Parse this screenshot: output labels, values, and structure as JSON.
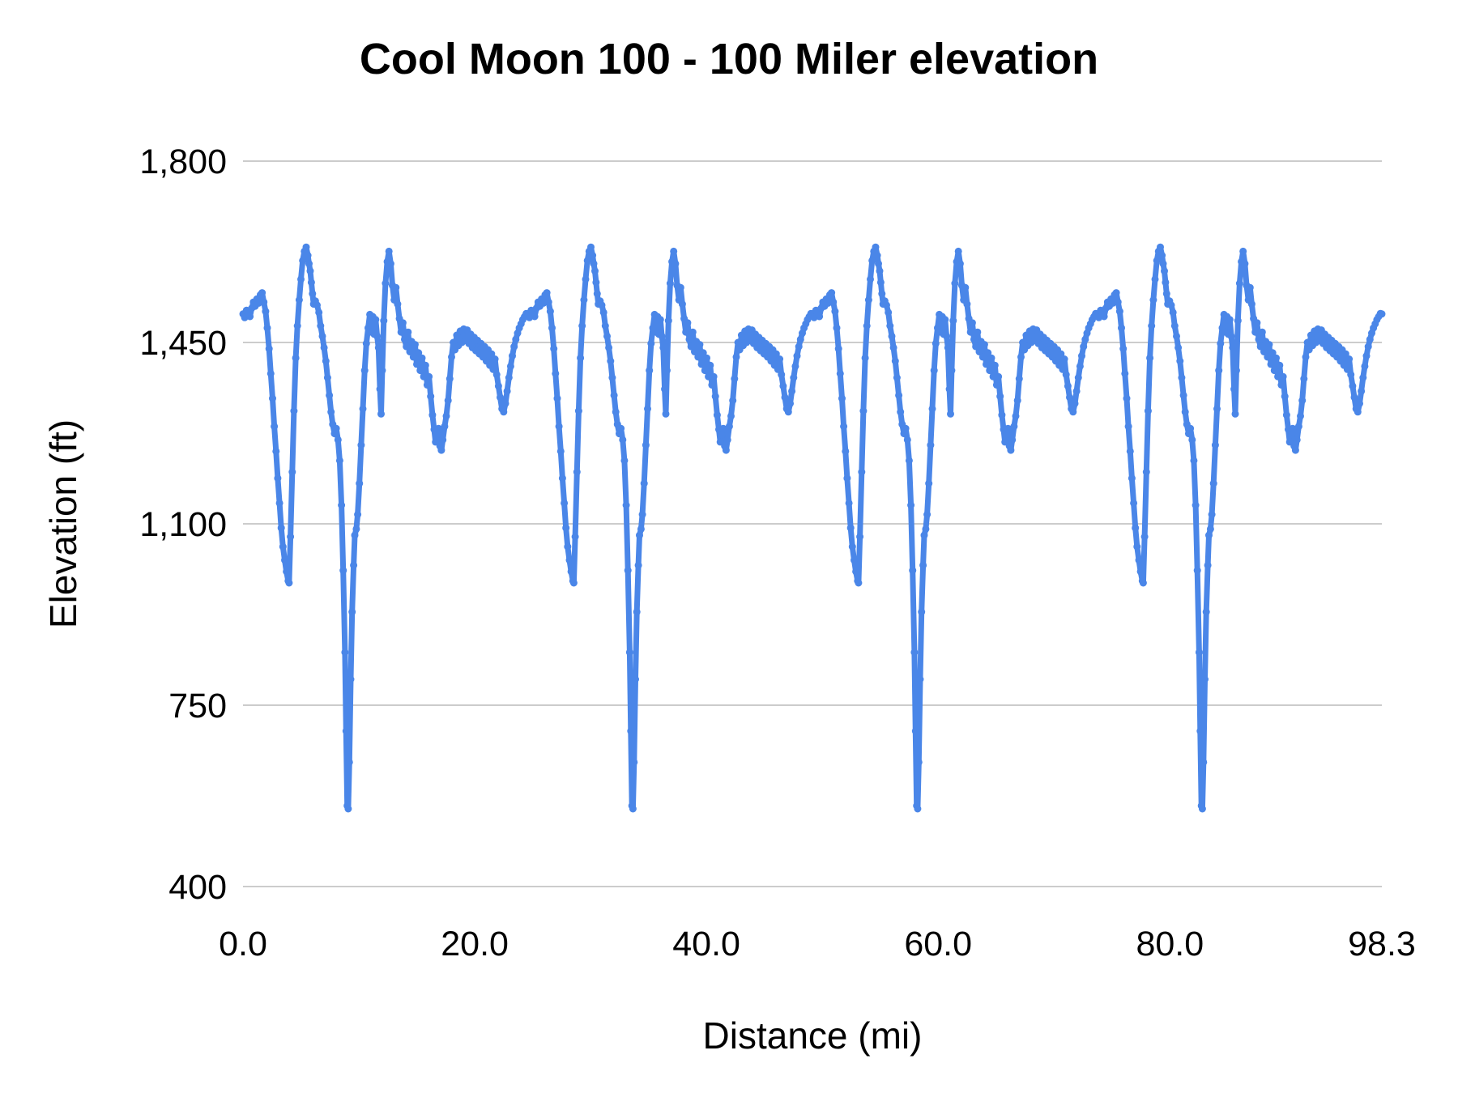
{
  "chart_data": {
    "type": "line",
    "title": "Cool Moon 100 - 100 Miler elevation",
    "xlabel": "Distance (mi)",
    "ylabel": "Elevation (ft)",
    "xlim": [
      0,
      98.3
    ],
    "ylim": [
      400,
      1800
    ],
    "x_ticks": [
      0,
      20,
      40,
      60,
      80,
      98.3
    ],
    "x_tick_labels": [
      "0.0",
      "20.0",
      "40.0",
      "60.0",
      "80.0",
      "98.3"
    ],
    "y_ticks": [
      400,
      750,
      1100,
      1450,
      1800
    ],
    "y_tick_labels": [
      "400",
      "750",
      "1,100",
      "1,450",
      "1,800"
    ],
    "grid": "horizontal-only",
    "gridline_color": "#cccccc",
    "legend": "none",
    "background_color": "#ffffff",
    "series": [
      {
        "name": "Elevation",
        "color": "#4a86e8",
        "structure": "course of 4 repeated laps; full x/y series = lap_profile repeated laps times at lap_length_mi spacing, closing at final point",
        "laps": 4,
        "lap_length_mi": 24.575,
        "final_point": [
          98.3,
          1505
        ],
        "lap_profile": [
          [
            0.0,
            1505
          ],
          [
            0.15,
            1498
          ],
          [
            0.3,
            1512
          ],
          [
            0.45,
            1506
          ],
          [
            0.6,
            1500
          ],
          [
            0.75,
            1516
          ],
          [
            0.9,
            1528
          ],
          [
            1.05,
            1520
          ],
          [
            1.2,
            1534
          ],
          [
            1.35,
            1526
          ],
          [
            1.5,
            1542
          ],
          [
            1.65,
            1546
          ],
          [
            1.8,
            1528
          ],
          [
            1.95,
            1510
          ],
          [
            2.1,
            1478
          ],
          [
            2.25,
            1438
          ],
          [
            2.4,
            1390
          ],
          [
            2.55,
            1342
          ],
          [
            2.7,
            1288
          ],
          [
            2.85,
            1240
          ],
          [
            3.0,
            1188
          ],
          [
            3.15,
            1140
          ],
          [
            3.3,
            1092
          ],
          [
            3.45,
            1056
          ],
          [
            3.6,
            1030
          ],
          [
            3.75,
            1008
          ],
          [
            3.9,
            990
          ],
          [
            3.98,
            986
          ],
          [
            4.1,
            1075
          ],
          [
            4.25,
            1200
          ],
          [
            4.4,
            1318
          ],
          [
            4.55,
            1420
          ],
          [
            4.7,
            1482
          ],
          [
            4.85,
            1532
          ],
          [
            5.0,
            1572
          ],
          [
            5.15,
            1608
          ],
          [
            5.3,
            1626
          ],
          [
            5.45,
            1634
          ],
          [
            5.6,
            1618
          ],
          [
            5.7,
            1602
          ],
          [
            5.8,
            1588
          ],
          [
            5.9,
            1566
          ],
          [
            6.0,
            1544
          ],
          [
            6.1,
            1524
          ],
          [
            6.25,
            1530
          ],
          [
            6.4,
            1522
          ],
          [
            6.55,
            1508
          ],
          [
            6.7,
            1482
          ],
          [
            6.85,
            1462
          ],
          [
            7.0,
            1440
          ],
          [
            7.15,
            1414
          ],
          [
            7.3,
            1382
          ],
          [
            7.45,
            1348
          ],
          [
            7.6,
            1316
          ],
          [
            7.75,
            1292
          ],
          [
            7.9,
            1274
          ],
          [
            8.05,
            1284
          ],
          [
            8.2,
            1262
          ],
          [
            8.35,
            1222
          ],
          [
            8.5,
            1136
          ],
          [
            8.65,
            1010
          ],
          [
            8.8,
            852
          ],
          [
            8.9,
            700
          ],
          [
            9.0,
            556
          ],
          [
            9.08,
            550
          ],
          [
            9.18,
            640
          ],
          [
            9.3,
            800
          ],
          [
            9.42,
            930
          ],
          [
            9.55,
            1020
          ],
          [
            9.65,
            1078
          ],
          [
            9.78,
            1090
          ],
          [
            9.9,
            1118
          ],
          [
            10.05,
            1178
          ],
          [
            10.2,
            1252
          ],
          [
            10.35,
            1322
          ],
          [
            10.5,
            1396
          ],
          [
            10.65,
            1448
          ],
          [
            10.8,
            1478
          ],
          [
            10.95,
            1504
          ],
          [
            11.08,
            1470
          ],
          [
            11.2,
            1500
          ],
          [
            11.32,
            1466
          ],
          [
            11.45,
            1494
          ],
          [
            11.58,
            1462
          ],
          [
            11.7,
            1440
          ],
          [
            11.82,
            1360
          ],
          [
            11.92,
            1312
          ],
          [
            12.02,
            1396
          ],
          [
            12.15,
            1492
          ],
          [
            12.3,
            1564
          ],
          [
            12.45,
            1606
          ],
          [
            12.6,
            1626
          ],
          [
            12.75,
            1602
          ],
          [
            12.9,
            1560
          ],
          [
            13.05,
            1532
          ],
          [
            13.2,
            1556
          ],
          [
            13.35,
            1524
          ],
          [
            13.5,
            1496
          ],
          [
            13.65,
            1470
          ],
          [
            13.8,
            1488
          ],
          [
            13.95,
            1456
          ],
          [
            14.1,
            1442
          ],
          [
            14.25,
            1470
          ],
          [
            14.4,
            1432
          ],
          [
            14.55,
            1452
          ],
          [
            14.7,
            1422
          ],
          [
            14.85,
            1446
          ],
          [
            15.0,
            1408
          ],
          [
            15.15,
            1430
          ],
          [
            15.3,
            1396
          ],
          [
            15.45,
            1420
          ],
          [
            15.6,
            1384
          ],
          [
            15.75,
            1406
          ],
          [
            15.9,
            1368
          ],
          [
            16.05,
            1384
          ],
          [
            16.2,
            1346
          ],
          [
            16.35,
            1310
          ],
          [
            16.5,
            1282
          ],
          [
            16.62,
            1258
          ],
          [
            16.75,
            1272
          ],
          [
            16.88,
            1284
          ],
          [
            17.0,
            1250
          ],
          [
            17.12,
            1242
          ],
          [
            17.25,
            1262
          ],
          [
            17.4,
            1288
          ],
          [
            17.55,
            1308
          ],
          [
            17.7,
            1338
          ],
          [
            17.85,
            1380
          ],
          [
            18.0,
            1422
          ],
          [
            18.15,
            1450
          ],
          [
            18.3,
            1436
          ],
          [
            18.45,
            1464
          ],
          [
            18.6,
            1444
          ],
          [
            18.75,
            1472
          ],
          [
            18.9,
            1450
          ],
          [
            19.05,
            1476
          ],
          [
            19.2,
            1454
          ],
          [
            19.35,
            1474
          ],
          [
            19.5,
            1448
          ],
          [
            19.65,
            1466
          ],
          [
            19.8,
            1440
          ],
          [
            19.95,
            1460
          ],
          [
            20.1,
            1434
          ],
          [
            20.25,
            1454
          ],
          [
            20.4,
            1428
          ],
          [
            20.55,
            1448
          ],
          [
            20.7,
            1422
          ],
          [
            20.85,
            1442
          ],
          [
            21.0,
            1414
          ],
          [
            21.15,
            1436
          ],
          [
            21.3,
            1406
          ],
          [
            21.45,
            1428
          ],
          [
            21.6,
            1398
          ],
          [
            21.75,
            1418
          ],
          [
            21.9,
            1388
          ],
          [
            22.05,
            1366
          ],
          [
            22.2,
            1344
          ],
          [
            22.35,
            1322
          ],
          [
            22.5,
            1316
          ],
          [
            22.65,
            1332
          ],
          [
            22.8,
            1356
          ],
          [
            22.95,
            1382
          ],
          [
            23.1,
            1404
          ],
          [
            23.25,
            1424
          ],
          [
            23.4,
            1442
          ],
          [
            23.55,
            1456
          ],
          [
            23.7,
            1468
          ],
          [
            23.85,
            1478
          ],
          [
            24.0,
            1486
          ],
          [
            24.15,
            1494
          ],
          [
            24.3,
            1500
          ],
          [
            24.45,
            1506
          ]
        ]
      }
    ]
  }
}
